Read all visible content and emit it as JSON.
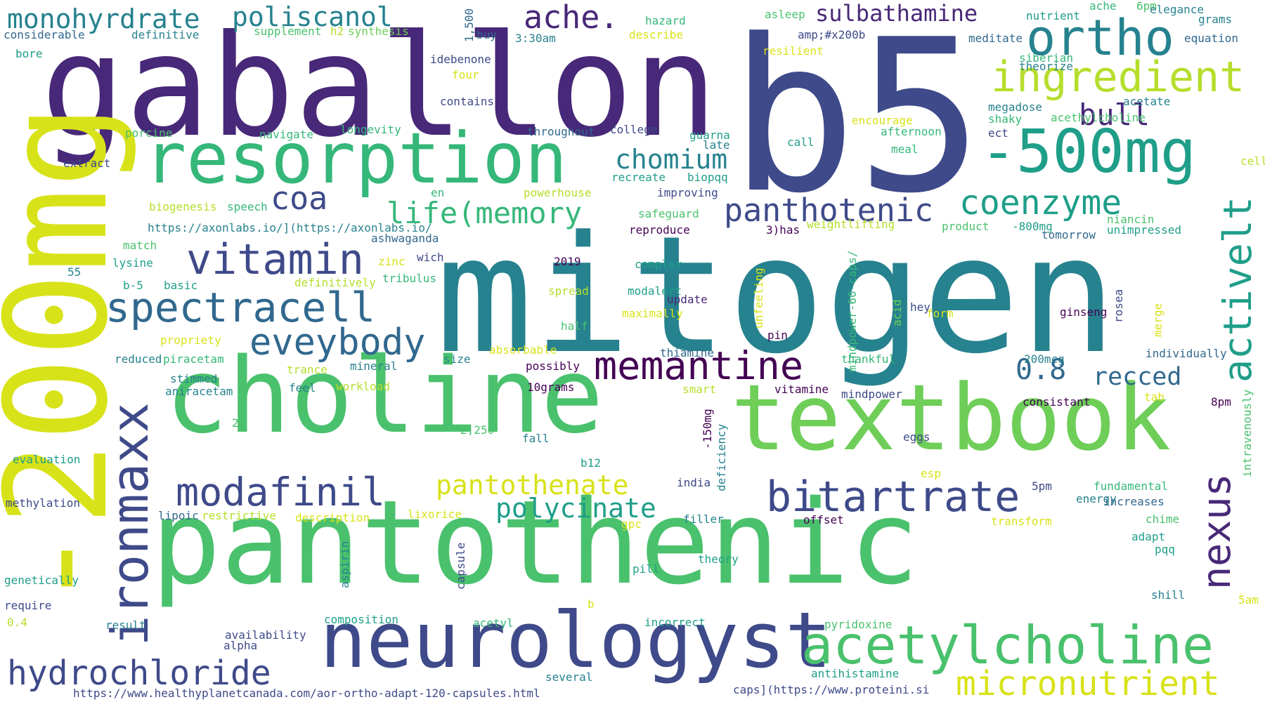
{
  "palette": {
    "purple1": "#440154",
    "purple2": "#482878",
    "indigo": "#3e4a89",
    "blue": "#31688e",
    "teal": "#26828e",
    "green1": "#1f9e89",
    "green2": "#35b779",
    "green3": "#4ac16d",
    "lime": "#6ece58",
    "yellowgreen": "#b5de2b",
    "yellow": "#d8e219"
  },
  "words": [
    {
      "text": "b5",
      "color": "#3e4a89"
    },
    {
      "text": "mitogen",
      "color": "#26828e"
    },
    {
      "text": "gaballon",
      "color": "#482878"
    },
    {
      "text": "-200mg",
      "color": "#d8e219"
    },
    {
      "text": "pantothenic",
      "color": "#4ac16d"
    },
    {
      "text": "choline",
      "color": "#4ac16d"
    },
    {
      "text": "textbook",
      "color": "#6ece58"
    },
    {
      "text": "neurologyst",
      "color": "#3e4a89"
    },
    {
      "text": "resorption",
      "color": "#35b779"
    },
    {
      "text": "acetylcholine",
      "color": "#4ac16d"
    },
    {
      "text": "-500mg",
      "color": "#1f9e89"
    },
    {
      "text": "spectracell",
      "color": "#31688e"
    },
    {
      "text": "ironmaxx",
      "color": "#3e4a89"
    },
    {
      "text": "ortho",
      "color": "#26828e"
    },
    {
      "text": "ingredient",
      "color": "#b5de2b"
    },
    {
      "text": "hydrochloride",
      "color": "#3e4a89"
    },
    {
      "text": "micronutrient",
      "color": "#d8e219"
    },
    {
      "text": "modafinil",
      "color": "#3e4a89"
    },
    {
      "text": "bitartrate",
      "color": "#3e4a89"
    },
    {
      "text": "nexus",
      "color": "#482878"
    },
    {
      "text": "vitamin",
      "color": "#3e4a89"
    },
    {
      "text": "memantine",
      "color": "#440154"
    },
    {
      "text": "eveybody",
      "color": "#31688e"
    },
    {
      "text": "coenzyme",
      "color": "#1f9e89"
    },
    {
      "text": "panthotenic",
      "color": "#3e4a89"
    },
    {
      "text": "activelt",
      "color": "#1f9e89"
    },
    {
      "text": "life(memory",
      "color": "#35b779"
    },
    {
      "text": "pantothenate",
      "color": "#d8e219"
    },
    {
      "text": "polycinate",
      "color": "#1f9e89"
    },
    {
      "text": "chomium",
      "color": "#26828e"
    },
    {
      "text": "monohyrdrate",
      "color": "#26828e"
    },
    {
      "text": "poliscanol",
      "color": "#26828e"
    },
    {
      "text": "ache.",
      "color": "#482878"
    },
    {
      "text": "sulbathamine",
      "color": "#482878"
    },
    {
      "text": "bull",
      "color": "#482878"
    },
    {
      "text": "coa",
      "color": "#3e4a89"
    },
    {
      "text": "0.8",
      "color": "#31688e"
    },
    {
      "text": "recced",
      "color": "#31688e"
    },
    {
      "text": "considerable",
      "color": "#31688e"
    },
    {
      "text": "definitive",
      "color": "#26828e"
    },
    {
      "text": "bore",
      "color": "#1f9e89"
    },
    {
      "text": "supplement",
      "color": "#4ac16d"
    },
    {
      "text": "h2",
      "color": "#b5de2b"
    },
    {
      "text": "synthesis",
      "color": "#6ece58"
    },
    {
      "text": "1,500",
      "color": "#31688e"
    },
    {
      "text": "buy",
      "color": "#31688e"
    },
    {
      "text": "3:30am",
      "color": "#26828e"
    },
    {
      "text": "hazard",
      "color": "#35b779"
    },
    {
      "text": "describe",
      "color": "#d8e219"
    },
    {
      "text": "asleep",
      "color": "#4ac16d"
    },
    {
      "text": "resilient",
      "color": "#d8e219"
    },
    {
      "text": "amp;#x200b",
      "color": "#3e4a89"
    },
    {
      "text": "nutrient",
      "color": "#1f9e89"
    },
    {
      "text": "ache",
      "color": "#35b779"
    },
    {
      "text": "6pm",
      "color": "#4ac16d"
    },
    {
      "text": "elegance",
      "color": "#26828e"
    },
    {
      "text": "grams",
      "color": "#26828e"
    },
    {
      "text": "meditate",
      "color": "#31688e"
    },
    {
      "text": "equation",
      "color": "#31688e"
    },
    {
      "text": "idebenone",
      "color": "#3e4a89"
    },
    {
      "text": "siberian",
      "color": "#35b779"
    },
    {
      "text": "theorize",
      "color": "#26828e"
    },
    {
      "text": "four",
      "color": "#d8e219"
    },
    {
      "text": "contains",
      "color": "#3e4a89"
    },
    {
      "text": "megadose",
      "color": "#26828e"
    },
    {
      "text": "acetate",
      "color": "#26828e"
    },
    {
      "text": "shaky",
      "color": "#35b779"
    },
    {
      "text": "acethylcholine",
      "color": "#4ac16d"
    },
    {
      "text": "encourage",
      "color": "#d8e219"
    },
    {
      "text": "ect",
      "color": "#3e4a89"
    },
    {
      "text": "porcine",
      "color": "#4ac16d"
    },
    {
      "text": "navigate",
      "color": "#35b779"
    },
    {
      "text": "longevity",
      "color": "#35b779"
    },
    {
      "text": "throughout",
      "color": "#31688e"
    },
    {
      "text": "college",
      "color": "#3e4a89"
    },
    {
      "text": "guarna",
      "color": "#1f9e89"
    },
    {
      "text": "late",
      "color": "#26828e"
    },
    {
      "text": "afternoon",
      "color": "#35b779"
    },
    {
      "text": "call",
      "color": "#1f9e89"
    },
    {
      "text": "meal",
      "color": "#35b779"
    },
    {
      "text": "extract",
      "color": "#3e4a89"
    },
    {
      "text": "cell",
      "color": "#b5de2b"
    },
    {
      "text": "recreate",
      "color": "#1f9e89"
    },
    {
      "text": "biopqq",
      "color": "#1f9e89"
    },
    {
      "text": "en",
      "color": "#35b779"
    },
    {
      "text": "powerhouse",
      "color": "#b5de2b"
    },
    {
      "text": "improving",
      "color": "#3e4a89"
    },
    {
      "text": "biogenesis",
      "color": "#b5de2b"
    },
    {
      "text": "speech",
      "color": "#35b779"
    },
    {
      "text": "safeguard",
      "color": "#4ac16d"
    },
    {
      "text": "https://axonlabs.io/](https://axonlabs.io/",
      "color": "#26828e"
    },
    {
      "text": "weightlifting",
      "color": "#b5de2b"
    },
    {
      "text": "product",
      "color": "#4ac16d"
    },
    {
      "text": "-800mg",
      "color": "#1f9e89"
    },
    {
      "text": "niancin",
      "color": "#4ac16d"
    },
    {
      "text": "unimpressed",
      "color": "#1f9e89"
    },
    {
      "text": "reproduce",
      "color": "#440154"
    },
    {
      "text": "3)has",
      "color": "#440154"
    },
    {
      "text": "tomorrow",
      "color": "#31688e"
    },
    {
      "text": "ashwaganda",
      "color": "#31688e"
    },
    {
      "text": "match",
      "color": "#4ac16d"
    },
    {
      "text": "lysine",
      "color": "#1f9e89"
    },
    {
      "text": "zinc",
      "color": "#d8e219"
    },
    {
      "text": "wich",
      "color": "#3e4a89"
    },
    {
      "text": "2019",
      "color": "#440154"
    },
    {
      "text": "complex",
      "color": "#1f9e89"
    },
    {
      "text": "55",
      "color": "#26828e"
    },
    {
      "text": "tribulus",
      "color": "#35b779"
    },
    {
      "text": "b-5",
      "color": "#1f9e89"
    },
    {
      "text": "basic",
      "color": "#1f9e89"
    },
    {
      "text": "definitively",
      "color": "#b5de2b"
    },
    {
      "text": "spread",
      "color": "#b5de2b"
    },
    {
      "text": "modalert",
      "color": "#1f9e89"
    },
    {
      "text": "update",
      "color": "#482878"
    },
    {
      "text": "unfeeling",
      "color": "#d8e219"
    },
    {
      "text": "mindpower-60-caps/",
      "color": "#35b779"
    },
    {
      "text": "hey",
      "color": "#3e4a89"
    },
    {
      "text": "acid",
      "color": "#6ece58"
    },
    {
      "text": "form",
      "color": "#d8e219"
    },
    {
      "text": "ginseng",
      "color": "#440154"
    },
    {
      "text": "rosea",
      "color": "#3e4a89"
    },
    {
      "text": "merge",
      "color": "#d8e219"
    },
    {
      "text": "maximally",
      "color": "#d8e219"
    },
    {
      "text": "half",
      "color": "#4ac16d"
    },
    {
      "text": "propriety",
      "color": "#d8e219"
    },
    {
      "text": "pin",
      "color": "#440154"
    },
    {
      "text": "reduced",
      "color": "#26828e"
    },
    {
      "text": "piracetam",
      "color": "#35b779"
    },
    {
      "text": "absorbable",
      "color": "#d8e219"
    },
    {
      "text": "size",
      "color": "#26828e"
    },
    {
      "text": "thiamine",
      "color": "#31688e"
    },
    {
      "text": "thankful",
      "color": "#35b779"
    },
    {
      "text": "200mcg",
      "color": "#26828e"
    },
    {
      "text": "individually",
      "color": "#31688e"
    },
    {
      "text": "trance",
      "color": "#b5de2b"
    },
    {
      "text": "mineral",
      "color": "#26828e"
    },
    {
      "text": "possibly",
      "color": "#440154"
    },
    {
      "text": "stimmed",
      "color": "#26828e"
    },
    {
      "text": "aniracetam",
      "color": "#26828e"
    },
    {
      "text": "feel",
      "color": "#26828e"
    },
    {
      "text": "workload",
      "color": "#b5de2b"
    },
    {
      "text": "10grams",
      "color": "#440154"
    },
    {
      "text": "smart",
      "color": "#b5de2b"
    },
    {
      "text": "vitamine",
      "color": "#440154"
    },
    {
      "text": "mindpower",
      "color": "#3e4a89"
    },
    {
      "text": "tab",
      "color": "#d8e219"
    },
    {
      "text": "consistant",
      "color": "#440154"
    },
    {
      "text": "8pm",
      "color": "#440154"
    },
    {
      "text": "2x",
      "color": "#4ac16d"
    },
    {
      "text": "-150mg",
      "color": "#440154"
    },
    {
      "text": "deficiency",
      "color": "#26828e"
    },
    {
      "text": "intravenously",
      "color": "#4ac16d"
    },
    {
      "text": "2,250",
      "color": "#4ac16d"
    },
    {
      "text": "fall",
      "color": "#26828e"
    },
    {
      "text": "eggs",
      "color": "#3e4a89"
    },
    {
      "text": "evaluation",
      "color": "#1f9e89"
    },
    {
      "text": "b12",
      "color": "#1f9e89"
    },
    {
      "text": "esp",
      "color": "#d8e219"
    },
    {
      "text": "india",
      "color": "#3e4a89"
    },
    {
      "text": "5pm",
      "color": "#3e4a89"
    },
    {
      "text": "fundamental",
      "color": "#35b779"
    },
    {
      "text": "energy",
      "color": "#26828e"
    },
    {
      "text": "increases",
      "color": "#31688e"
    },
    {
      "text": "methylation",
      "color": "#3e4a89"
    },
    {
      "text": "lipoic",
      "color": "#31688e"
    },
    {
      "text": "restrictive",
      "color": "#b5de2b"
    },
    {
      "text": "description",
      "color": "#d8e219"
    },
    {
      "text": "lixorice",
      "color": "#d8e219"
    },
    {
      "text": "gpc",
      "color": "#d8e219"
    },
    {
      "text": "filler",
      "color": "#26828e"
    },
    {
      "text": "offset",
      "color": "#440154"
    },
    {
      "text": "transform",
      "color": "#d8e219"
    },
    {
      "text": "chime",
      "color": "#4ac16d"
    },
    {
      "text": "adapt",
      "color": "#1f9e89"
    },
    {
      "text": "theory",
      "color": "#1f9e89"
    },
    {
      "text": "pqq",
      "color": "#1f9e89"
    },
    {
      "text": "genetically",
      "color": "#1f9e89"
    },
    {
      "text": "aspirin",
      "color": "#26828e"
    },
    {
      "text": "capsule",
      "color": "#3e4a89"
    },
    {
      "text": "pill",
      "color": "#1f9e89"
    },
    {
      "text": "shill",
      "color": "#26828e"
    },
    {
      "text": "5am",
      "color": "#d8e219"
    },
    {
      "text": "b",
      "color": "#d8e219"
    },
    {
      "text": "require",
      "color": "#3e4a89"
    },
    {
      "text": "0.4",
      "color": "#b5de2b"
    },
    {
      "text": "result",
      "color": "#26828e"
    },
    {
      "text": "composition",
      "color": "#1f9e89"
    },
    {
      "text": "acetyl",
      "color": "#35b779"
    },
    {
      "text": "incorrect",
      "color": "#1f9e89"
    },
    {
      "text": "pyridoxine",
      "color": "#4ac16d"
    },
    {
      "text": "availability",
      "color": "#3e4a89"
    },
    {
      "text": "alpha",
      "color": "#3e4a89"
    },
    {
      "text": "antihistamine",
      "color": "#1f9e89"
    },
    {
      "text": "several",
      "color": "#26828e"
    },
    {
      "text": "https://www.healthyplanetcanada.com/aor-ortho-adapt-120-capsules.html",
      "color": "#3e4a89"
    },
    {
      "text": "caps](https://www.proteini.si",
      "color": "#3e4a89"
    }
  ]
}
